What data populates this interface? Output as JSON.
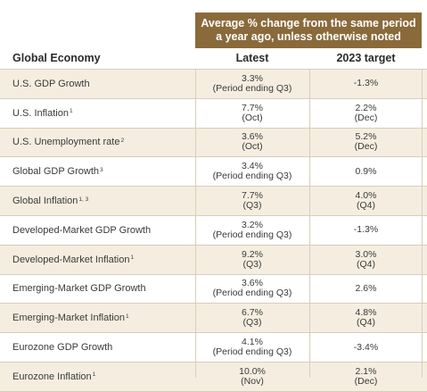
{
  "header": {
    "band_line1": "Average % change from the same period",
    "band_line2": "a year ago, unless otherwise noted",
    "col_global": "Global Economy",
    "col_latest": "Latest",
    "col_target": "2023 target"
  },
  "rows": [
    {
      "label": "U.S. GDP Growth",
      "sup": "",
      "latest": "3.3%",
      "latest_sub": "(Period ending Q3)",
      "target": "-1.3%",
      "target_sub": ""
    },
    {
      "label": "U.S. Inflation",
      "sup": "1",
      "latest": "7.7%",
      "latest_sub": "(Oct)",
      "target": "2.2%",
      "target_sub": "(Dec)"
    },
    {
      "label": "U.S. Unemployment rate",
      "sup": "2",
      "latest": "3.6%",
      "latest_sub": "(Oct)",
      "target": "5.2%",
      "target_sub": "(Dec)"
    },
    {
      "label": "Global GDP Growth",
      "sup": "3",
      "latest": "3.4%",
      "latest_sub": "(Period ending Q3)",
      "target": "0.9%",
      "target_sub": ""
    },
    {
      "label": "Global Inflation",
      "sup": "1, 3",
      "latest": "7.7%",
      "latest_sub": "(Q3)",
      "target": "4.0%",
      "target_sub": "(Q4)"
    },
    {
      "label": "Developed-Market GDP Growth",
      "sup": "",
      "latest": "3.2%",
      "latest_sub": "(Period ending Q3)",
      "target": "-1.3%",
      "target_sub": ""
    },
    {
      "label": "Developed-Market Inflation",
      "sup": "1",
      "latest": "9.2%",
      "latest_sub": "(Q3)",
      "target": "3.0%",
      "target_sub": "(Q4)"
    },
    {
      "label": "Emerging-Market GDP Growth",
      "sup": "",
      "latest": "3.6%",
      "latest_sub": "(Period ending Q3)",
      "target": "2.6%",
      "target_sub": ""
    },
    {
      "label": "Emerging-Market Inflation",
      "sup": "1",
      "latest": "6.7%",
      "latest_sub": "(Q3)",
      "target": "4.8%",
      "target_sub": "(Q4)"
    },
    {
      "label": "Eurozone GDP Growth",
      "sup": "",
      "latest": "4.1%",
      "latest_sub": "(Period ending Q3)",
      "target": "-3.4%",
      "target_sub": ""
    },
    {
      "label": "Eurozone Inflation",
      "sup": "1",
      "latest": "10.0%",
      "latest_sub": "(Nov)",
      "target": "2.1%",
      "target_sub": "(Dec)"
    }
  ],
  "colors": {
    "band": "#8a6a3b",
    "shade": "#f5eee0",
    "rule": "#d8cdb8"
  }
}
